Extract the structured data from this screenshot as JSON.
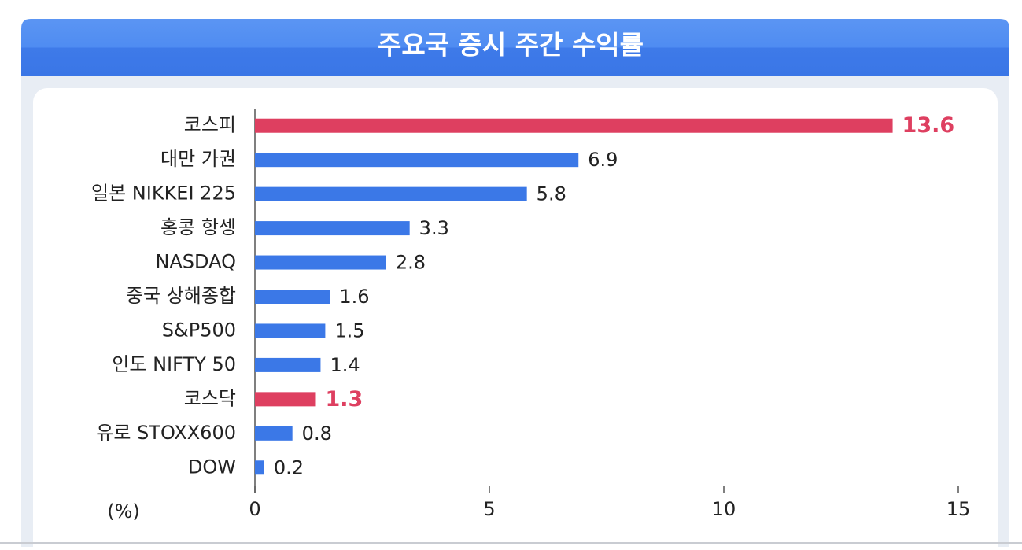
{
  "chart_data": {
    "type": "bar",
    "orientation": "horizontal",
    "title": "주요국 증시 주간 수익률",
    "x_label": "(%)",
    "categories": [
      "코스피",
      "대만 가권",
      "일본 NIKKEI 225",
      "홍콩 항셍",
      "NASDAQ",
      "중국 상해종합",
      "S&P500",
      "인도 NIFTY 50",
      "코스닥",
      "유로 STOXX600",
      "DOW"
    ],
    "values": [
      13.6,
      6.9,
      5.8,
      3.3,
      2.8,
      1.6,
      1.5,
      1.4,
      1.3,
      0.8,
      0.2
    ],
    "color": "#3b78e7",
    "colors": [
      "#de3f60",
      "#3b78e7",
      "#3b78e7",
      "#3b78e7",
      "#3b78e7",
      "#3b78e7",
      "#3b78e7",
      "#3b78e7",
      "#de3f60",
      "#3b78e7",
      "#3b78e7"
    ],
    "xlim": [
      0,
      15
    ],
    "xticks": [
      0,
      5,
      10,
      15
    ],
    "grid": false
  }
}
